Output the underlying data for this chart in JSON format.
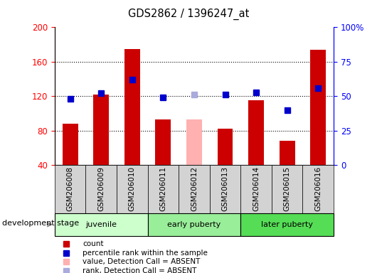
{
  "title": "GDS2862 / 1396247_at",
  "samples": [
    "GSM206008",
    "GSM206009",
    "GSM206010",
    "GSM206011",
    "GSM206012",
    "GSM206013",
    "GSM206014",
    "GSM206015",
    "GSM206016"
  ],
  "count_values": [
    88,
    122,
    175,
    93,
    null,
    82,
    115,
    68,
    174
  ],
  "count_absent_values": [
    null,
    null,
    null,
    null,
    93,
    null,
    null,
    null,
    null
  ],
  "rank_values": [
    48,
    52,
    62,
    49,
    null,
    51,
    53,
    40,
    56
  ],
  "rank_absent_values": [
    null,
    null,
    null,
    null,
    51,
    null,
    null,
    null,
    null
  ],
  "count_color": "#cc0000",
  "count_absent_color": "#ffb0b0",
  "rank_color": "#0000cc",
  "rank_absent_color": "#aaaadd",
  "ylim_left": [
    40,
    200
  ],
  "ylim_right": [
    0,
    100
  ],
  "yticks_left": [
    40,
    80,
    120,
    160,
    200
  ],
  "yticks_right": [
    0,
    25,
    50,
    75,
    100
  ],
  "yticklabels_right": [
    "0",
    "25",
    "50",
    "75",
    "100%"
  ],
  "groups": [
    {
      "label": "juvenile",
      "start": 0,
      "end": 3,
      "color": "#ccffcc"
    },
    {
      "label": "early puberty",
      "start": 3,
      "end": 6,
      "color": "#99ee99"
    },
    {
      "label": "later puberty",
      "start": 6,
      "end": 9,
      "color": "#55dd55"
    }
  ],
  "dev_stage_label": "development stage",
  "legend_items": [
    {
      "label": "count",
      "color": "#cc0000"
    },
    {
      "label": "percentile rank within the sample",
      "color": "#0000cc"
    },
    {
      "label": "value, Detection Call = ABSENT",
      "color": "#ffb0b0"
    },
    {
      "label": "rank, Detection Call = ABSENT",
      "color": "#aaaadd"
    }
  ],
  "bar_width": 0.5,
  "marker_size": 6,
  "grid_color": "black",
  "tick_label_bg": "#d3d3d3"
}
